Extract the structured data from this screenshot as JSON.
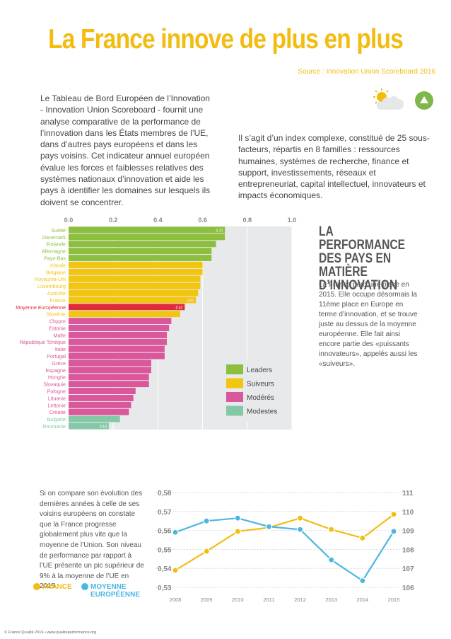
{
  "title": "La France innove de plus en plus",
  "source": "Source : Innovation Union Scoreboard 2016",
  "intro_left": "Le Tableau de Bord Européen de l’Innovation - Innovation Union Scoreboard - fournit une analyse comparative de la performance de l’innovation dans les États membres de l’UE, dans d’autres pays européens et dans les pays voisins. Cet indicateur annuel européen évalue les forces et faiblesses relatives des systèmes nationaux d’innovation et aide les pays à identifier les domaines sur lesquels ils doivent se concentrer.",
  "intro_right": "Il s’agit d’un index complexe, constitué de 25 sous-facteurs, répartis en 8 familles : ressources humaines, systèmes de recherche, finance et support, investissements, réseaux et entrepreneuriat, capital intellectuel, innovateurs et impacts économiques.",
  "perf_title": "La performance des pays en matière d’innovation",
  "perf_text": "La France perd une place en 2015. Elle occupe désormais la 11ème place en Europe en terme d’innovation, et se trouve juste au dessus de la moyenne européenne. Elle fait ainsi encore partie des «puissants innovateurs», appelés aussi les «suiveurs».",
  "bottom_text": "Si on compare son évolution des dernières années à celle de ses voisins européens on constate que la France progresse globalement plus vite que la moyenne de l’Union. Son niveau de performance par rapport à l’UE présente un pic supérieur de 9% à la moyenne de l’UE en 2015.",
  "legend_line": {
    "france": "FRANCE",
    "eu": "MOYENNE EUROPÉENNE"
  },
  "footer": "© France Qualité 2016 • www.qualiteperformance.org",
  "colors": {
    "leaders": "#8dbf3f",
    "suiveurs": "#f2c510",
    "moderes": "#d9579a",
    "modestes": "#84c9a6",
    "eu": "#e02b3a",
    "france_line": "#f2bc11",
    "eu_line": "#4cb5e3"
  },
  "chart_data": [
    {
      "type": "bar",
      "orientation": "horizontal",
      "xlim": [
        0,
        1.0
      ],
      "ticks": [
        "0.0",
        "0.2",
        "0.4",
        "0.6",
        "0.8",
        "1.0"
      ],
      "categories": [
        "Suède",
        "Danemark",
        "Finlande",
        "Allemagne",
        "Pays-Bas",
        "Irlande",
        "Belgique",
        "Royaume-Uni",
        "Luxembourg",
        "Autriche",
        "France",
        "Moyenne Européenne",
        "Slovénie",
        "Chypre",
        "Estonie",
        "Malte",
        "République Tchèque",
        "Italie",
        "Portugal",
        "Grèce",
        "Espagne",
        "Hongrie",
        "Slovaquie",
        "Pologne",
        "Lituanie",
        "Lettonie",
        "Croatie",
        "Bulgarie",
        "Roumanie"
      ],
      "values": [
        0.7,
        0.7,
        0.66,
        0.64,
        0.64,
        0.6,
        0.6,
        0.59,
        0.59,
        0.58,
        0.57,
        0.52,
        0.5,
        0.46,
        0.45,
        0.44,
        0.44,
        0.43,
        0.43,
        0.37,
        0.37,
        0.36,
        0.36,
        0.3,
        0.29,
        0.28,
        0.27,
        0.23,
        0.18
      ],
      "groups": [
        "leaders",
        "leaders",
        "leaders",
        "leaders",
        "leaders",
        "suiveurs",
        "suiveurs",
        "suiveurs",
        "suiveurs",
        "suiveurs",
        "suiveurs",
        "eu",
        "suiveurs",
        "moderes",
        "moderes",
        "moderes",
        "moderes",
        "moderes",
        "moderes",
        "moderes",
        "moderes",
        "moderes",
        "moderes",
        "moderes",
        "moderes",
        "moderes",
        "moderes",
        "modestes",
        "modestes"
      ],
      "data_labels": {
        "0": "0.70",
        "10": "0.57",
        "11": "0.52",
        "28": "0.18"
      },
      "legend": [
        "Leaders",
        "Suiveurs",
        "Modérés",
        "Modestes"
      ]
    },
    {
      "type": "line",
      "x": [
        "2008",
        "2009",
        "2010",
        "2011",
        "2012",
        "2013",
        "2014",
        "2015"
      ],
      "y_left_ticks": [
        "0,58",
        "0,57",
        "0,56",
        "0,55",
        "0,54",
        "0,53"
      ],
      "y_left_lim": [
        0.53,
        0.58
      ],
      "y_right_ticks": [
        "111",
        "110",
        "109",
        "108",
        "107",
        "106"
      ],
      "y_right_lim": [
        106,
        111
      ],
      "series": [
        {
          "name": "FRANCE",
          "axis": "left",
          "values": [
            0.539,
            0.549,
            0.5595,
            0.5615,
            0.5665,
            0.5605,
            0.556,
            0.5685
          ]
        },
        {
          "name": "MOYENNE EUROPÉENNE",
          "axis": "left",
          "values": [
            0.559,
            0.565,
            0.5665,
            0.562,
            0.5605,
            0.5445,
            0.5335,
            0.5595
          ]
        }
      ]
    }
  ]
}
